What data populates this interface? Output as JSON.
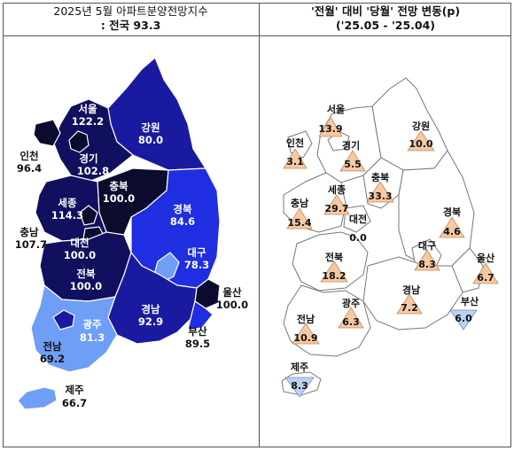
{
  "header": {
    "left_line1": "2025년 5월 아파트분양전망지수",
    "left_line2_prefix": ": 전국 ",
    "left_line2_value": "93.3",
    "right_line1": "'전월' 대비 '당월' 전망 변동(p)",
    "right_line2": "('25.05  -  '25.04)"
  },
  "colors": {
    "very_dark": "#0b0b2e",
    "dark_navy": "#10105e",
    "navy": "#1a1aa0",
    "royal_blue": "#1f2ee0",
    "mid_blue": "#3b6df0",
    "light_blue": "#6e9ef5",
    "triangle_up": "#f7c9a2",
    "triangle_down": "#bcd2f2"
  },
  "index_map": [
    {
      "name": "서울",
      "value": "122.2"
    },
    {
      "name": "인천",
      "value": "96.4"
    },
    {
      "name": "경기",
      "value": "102.8"
    },
    {
      "name": "강원",
      "value": "80.0"
    },
    {
      "name": "세종",
      "value": "114.3"
    },
    {
      "name": "충북",
      "value": "100.0"
    },
    {
      "name": "충남",
      "value": "107.7"
    },
    {
      "name": "대전",
      "value": "100.0"
    },
    {
      "name": "경북",
      "value": "84.6"
    },
    {
      "name": "대구",
      "value": "78.3"
    },
    {
      "name": "전북",
      "value": "100.0"
    },
    {
      "name": "울산",
      "value": "100.0"
    },
    {
      "name": "광주",
      "value": "81.3"
    },
    {
      "name": "경남",
      "value": "92.9"
    },
    {
      "name": "부산",
      "value": "89.5"
    },
    {
      "name": "전남",
      "value": "69.2"
    },
    {
      "name": "제주",
      "value": "66.7"
    }
  ],
  "change_map": [
    {
      "name": "서울",
      "value": "13.9",
      "direction": "up"
    },
    {
      "name": "강원",
      "value": "10.0",
      "direction": "up"
    },
    {
      "name": "인천",
      "value": "3.1",
      "direction": "up"
    },
    {
      "name": "경기",
      "value": "5.5",
      "direction": "up"
    },
    {
      "name": "세종",
      "value": "29.7",
      "direction": "up"
    },
    {
      "name": "충북",
      "value": "33.3",
      "direction": "up"
    },
    {
      "name": "충남",
      "value": "15.4",
      "direction": "up"
    },
    {
      "name": "대전",
      "value": "0.0",
      "direction": "flat"
    },
    {
      "name": "경북",
      "value": "4.6",
      "direction": "up"
    },
    {
      "name": "대구",
      "value": "8.3",
      "direction": "up"
    },
    {
      "name": "울산",
      "value": "6.7",
      "direction": "up"
    },
    {
      "name": "전북",
      "value": "18.2",
      "direction": "up"
    },
    {
      "name": "경남",
      "value": "7.2",
      "direction": "up"
    },
    {
      "name": "광주",
      "value": "6.3",
      "direction": "up"
    },
    {
      "name": "부산",
      "value": "6.0",
      "direction": "down"
    },
    {
      "name": "전남",
      "value": "10.9",
      "direction": "up"
    },
    {
      "name": "제주",
      "value": "8.3",
      "direction": "down"
    }
  ]
}
